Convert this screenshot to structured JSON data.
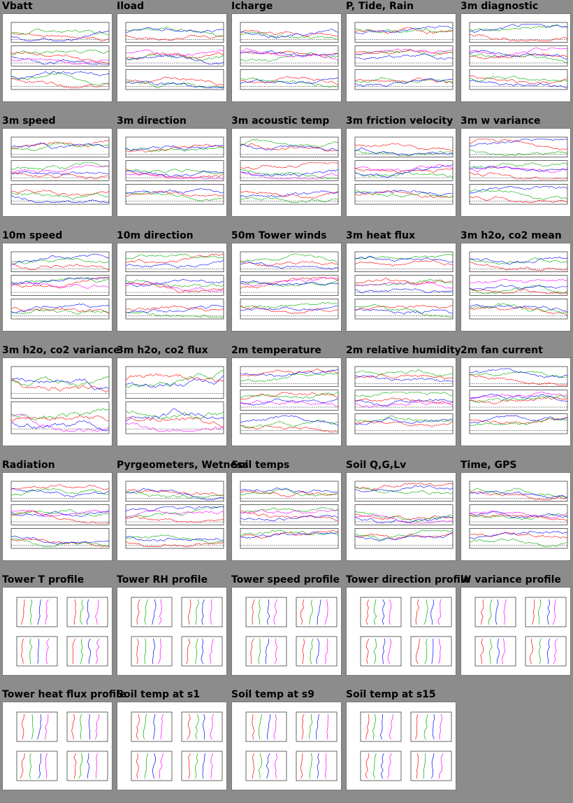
{
  "page": {
    "rows": [
      [
        "Vbatt",
        "Iload",
        "Icharge",
        "P, Tide, Rain",
        "3m diagnostic"
      ],
      [
        "3m speed",
        "3m direction",
        "3m acoustic temp",
        "3m friction velocity",
        "3m w variance"
      ],
      [
        "10m speed",
        "10m direction",
        "50m Tower winds",
        "3m heat flux",
        "3m h2o, co2 mean"
      ],
      [
        "3m h2o, co2 variance",
        "3m h2o, co2 flux",
        "2m temperature",
        "2m relative humidity",
        "2m fan current"
      ],
      [
        "Radiation",
        "Pyrgeometers, Wetness",
        "Soil temps",
        "Soil Q,G,Lv",
        "Time, GPS"
      ],
      [
        "Tower T profile",
        "Tower RH profile",
        "Tower speed profile",
        "Tower direction profile",
        "W variance profile"
      ],
      [
        "Tower heat flux profile",
        "Soil temp at s1",
        "Soil temp at s9",
        "Soil temp at s15"
      ]
    ]
  },
  "thumbnail_kind": {
    "ts": [
      "Vbatt",
      "Iload",
      "Icharge",
      "P, Tide, Rain",
      "3m diagnostic",
      "3m speed",
      "3m direction",
      "3m acoustic temp",
      "3m friction velocity",
      "3m w variance",
      "10m speed",
      "10m direction",
      "50m Tower winds",
      "3m heat flux",
      "3m h2o, co2 mean",
      "2m temperature",
      "2m relative humidity",
      "2m fan current",
      "Radiation",
      "Pyrgeometers, Wetness",
      "Soil temps",
      "Soil Q,G,Lv",
      "Time, GPS"
    ],
    "ts2": [
      "3m h2o, co2 variance",
      "3m h2o, co2 flux"
    ],
    "profile": [
      "Tower T profile",
      "Tower RH profile",
      "Tower speed profile",
      "Tower direction profile",
      "W variance profile",
      "Tower heat flux profile",
      "Soil temp at s1",
      "Soil temp at s9",
      "Soil temp at s15"
    ]
  },
  "colors": {
    "page_bg": "#8c8c8c",
    "series": [
      "#ff0000",
      "#00aa00",
      "#0000ff",
      "#ff00ff",
      "#00cccc",
      "#ffaa00",
      "#000000"
    ]
  }
}
